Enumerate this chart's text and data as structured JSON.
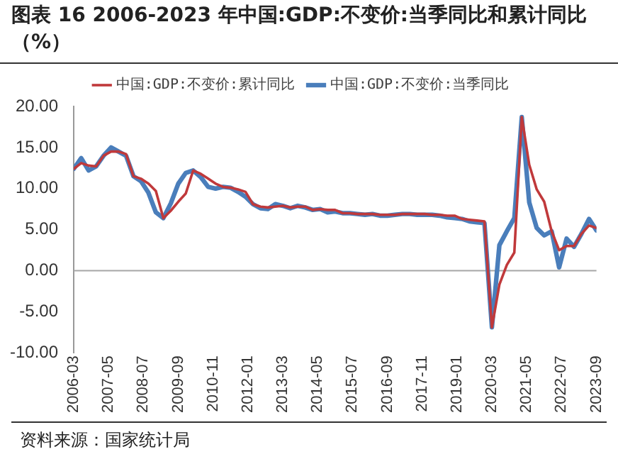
{
  "chart_data": {
    "type": "line",
    "title": "图表 16 2006-2023 年中国:GDP:不变价:当季同比和累计同比（%）",
    "legend": "top",
    "grid": false,
    "marker": "none",
    "line_style": "solid",
    "x": [
      "2006-03",
      "2006-06",
      "2006-09",
      "2006-12",
      "2007-03",
      "2007-06",
      "2007-09",
      "2007-12",
      "2008-03",
      "2008-06",
      "2008-09",
      "2008-12",
      "2009-03",
      "2009-06",
      "2009-09",
      "2009-12",
      "2010-03",
      "2010-06",
      "2010-09",
      "2010-12",
      "2011-03",
      "2011-06",
      "2011-09",
      "2011-12",
      "2012-03",
      "2012-06",
      "2012-09",
      "2012-12",
      "2013-03",
      "2013-06",
      "2013-09",
      "2013-12",
      "2014-03",
      "2014-06",
      "2014-09",
      "2014-12",
      "2015-03",
      "2015-06",
      "2015-09",
      "2015-12",
      "2016-03",
      "2016-06",
      "2016-09",
      "2016-12",
      "2017-03",
      "2017-06",
      "2017-09",
      "2017-12",
      "2018-03",
      "2018-06",
      "2018-09",
      "2018-12",
      "2019-03",
      "2019-06",
      "2019-09",
      "2019-12",
      "2020-03",
      "2020-06",
      "2020-09",
      "2020-12",
      "2021-03",
      "2021-06",
      "2021-09",
      "2021-12",
      "2022-03",
      "2022-06",
      "2022-09",
      "2022-12",
      "2023-03",
      "2023-06",
      "2023-09"
    ],
    "series": [
      {
        "name": "中国:GDP:不变价:当季同比",
        "color": "#4a7ebb",
        "values": [
          12.4,
          13.7,
          12.2,
          12.7,
          14.0,
          15.0,
          14.5,
          14.0,
          11.5,
          10.9,
          9.5,
          7.1,
          6.4,
          8.2,
          10.6,
          11.9,
          12.2,
          11.4,
          10.2,
          10.0,
          10.2,
          10.1,
          9.6,
          9.0,
          8.1,
          7.6,
          7.5,
          8.1,
          7.9,
          7.6,
          7.9,
          7.7,
          7.4,
          7.5,
          7.1,
          7.2,
          7.0,
          7.0,
          6.9,
          6.8,
          6.9,
          6.7,
          6.7,
          6.8,
          6.9,
          6.9,
          6.8,
          6.8,
          6.8,
          6.7,
          6.5,
          6.4,
          6.3,
          6.0,
          5.9,
          5.8,
          -6.9,
          3.1,
          4.8,
          6.4,
          18.7,
          8.3,
          5.2,
          4.3,
          4.8,
          0.4,
          3.9,
          2.9,
          4.5,
          6.3,
          4.9
        ]
      },
      {
        "name": "中国:GDP:不变价:累计同比",
        "color": "#c0393b",
        "values": [
          12.4,
          13.1,
          12.8,
          12.7,
          14.0,
          14.5,
          14.5,
          14.2,
          11.5,
          11.2,
          10.6,
          9.7,
          6.4,
          7.3,
          8.4,
          9.4,
          12.2,
          11.8,
          11.2,
          10.6,
          10.2,
          10.1,
          9.9,
          9.6,
          8.1,
          7.8,
          7.7,
          7.8,
          7.9,
          7.7,
          7.8,
          7.8,
          7.4,
          7.5,
          7.4,
          7.4,
          7.0,
          7.0,
          6.9,
          6.9,
          6.9,
          6.8,
          6.8,
          6.8,
          6.9,
          6.9,
          6.9,
          6.9,
          6.8,
          6.8,
          6.7,
          6.7,
          6.3,
          6.2,
          6.1,
          6.0,
          -6.9,
          -1.7,
          0.7,
          2.2,
          18.7,
          12.9,
          9.9,
          8.4,
          4.8,
          2.5,
          3.0,
          3.0,
          4.5,
          5.5,
          5.2
        ]
      }
    ],
    "xlim": [
      "2006-03",
      "2023-09"
    ],
    "xticks": [
      "2006-03",
      "2007-05",
      "2008-07",
      "2009-09",
      "2010-11",
      "2012-01",
      "2013-03",
      "2014-05",
      "2015-07",
      "2016-09",
      "2017-11",
      "2019-01",
      "2020-03",
      "2021-05",
      "2022-07",
      "2023-09"
    ],
    "ylim": [
      -10,
      20
    ],
    "yticks": [
      {
        "value": -10,
        "label": "-10.00"
      },
      {
        "value": -5,
        "label": "-5.00"
      },
      {
        "value": 0,
        "label": "0.00"
      },
      {
        "value": 5,
        "label": "5.00"
      },
      {
        "value": 10,
        "label": "10.00"
      },
      {
        "value": 15,
        "label": "15.00"
      },
      {
        "value": 20,
        "label": "20.00"
      }
    ],
    "ref_lines": [
      {
        "axis": "y",
        "value": 0,
        "color": "#a6a6a6"
      }
    ],
    "annotations": [
      "资料来源：国家统计局"
    ]
  }
}
